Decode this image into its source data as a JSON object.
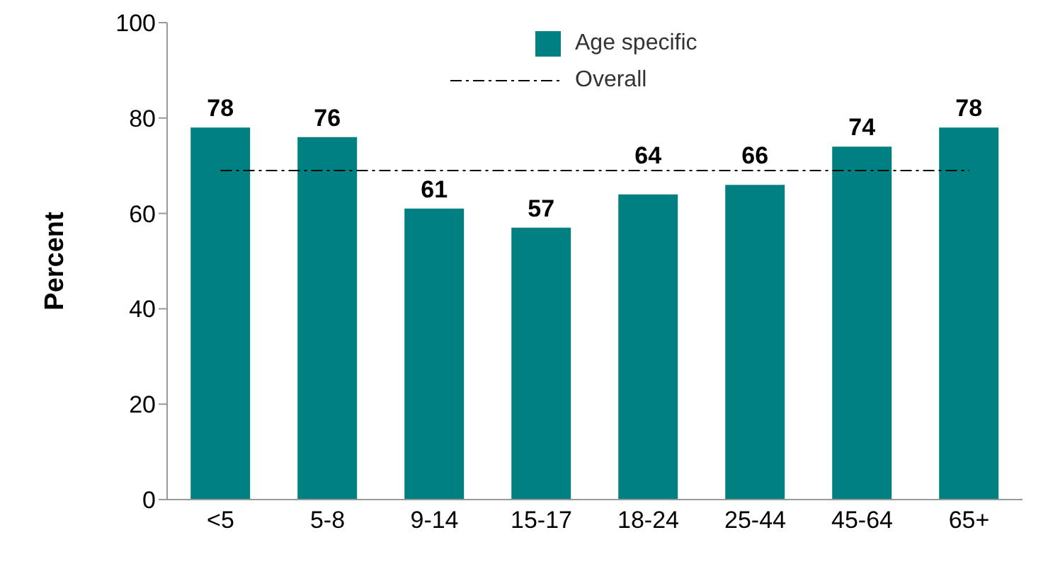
{
  "chart_data": {
    "type": "bar",
    "ylabel": "Percent",
    "categories": [
      "<5",
      "5-8",
      "9-14",
      "15-17",
      "18-24",
      "25-44",
      "45-64",
      "65+"
    ],
    "series": [
      {
        "name": "Age specific",
        "color": "#008080",
        "values": [
          78,
          76,
          61,
          57,
          64,
          66,
          74,
          78
        ]
      }
    ],
    "ylim": [
      0,
      100
    ],
    "yticks": [
      0,
      20,
      40,
      60,
      80,
      100
    ],
    "grid": false,
    "legend": "top",
    "data_labels": true,
    "ref_lines": [
      {
        "axis": "y",
        "value": 69,
        "label": "Overall",
        "color": "#000000",
        "line_style": "dashed"
      }
    ]
  }
}
